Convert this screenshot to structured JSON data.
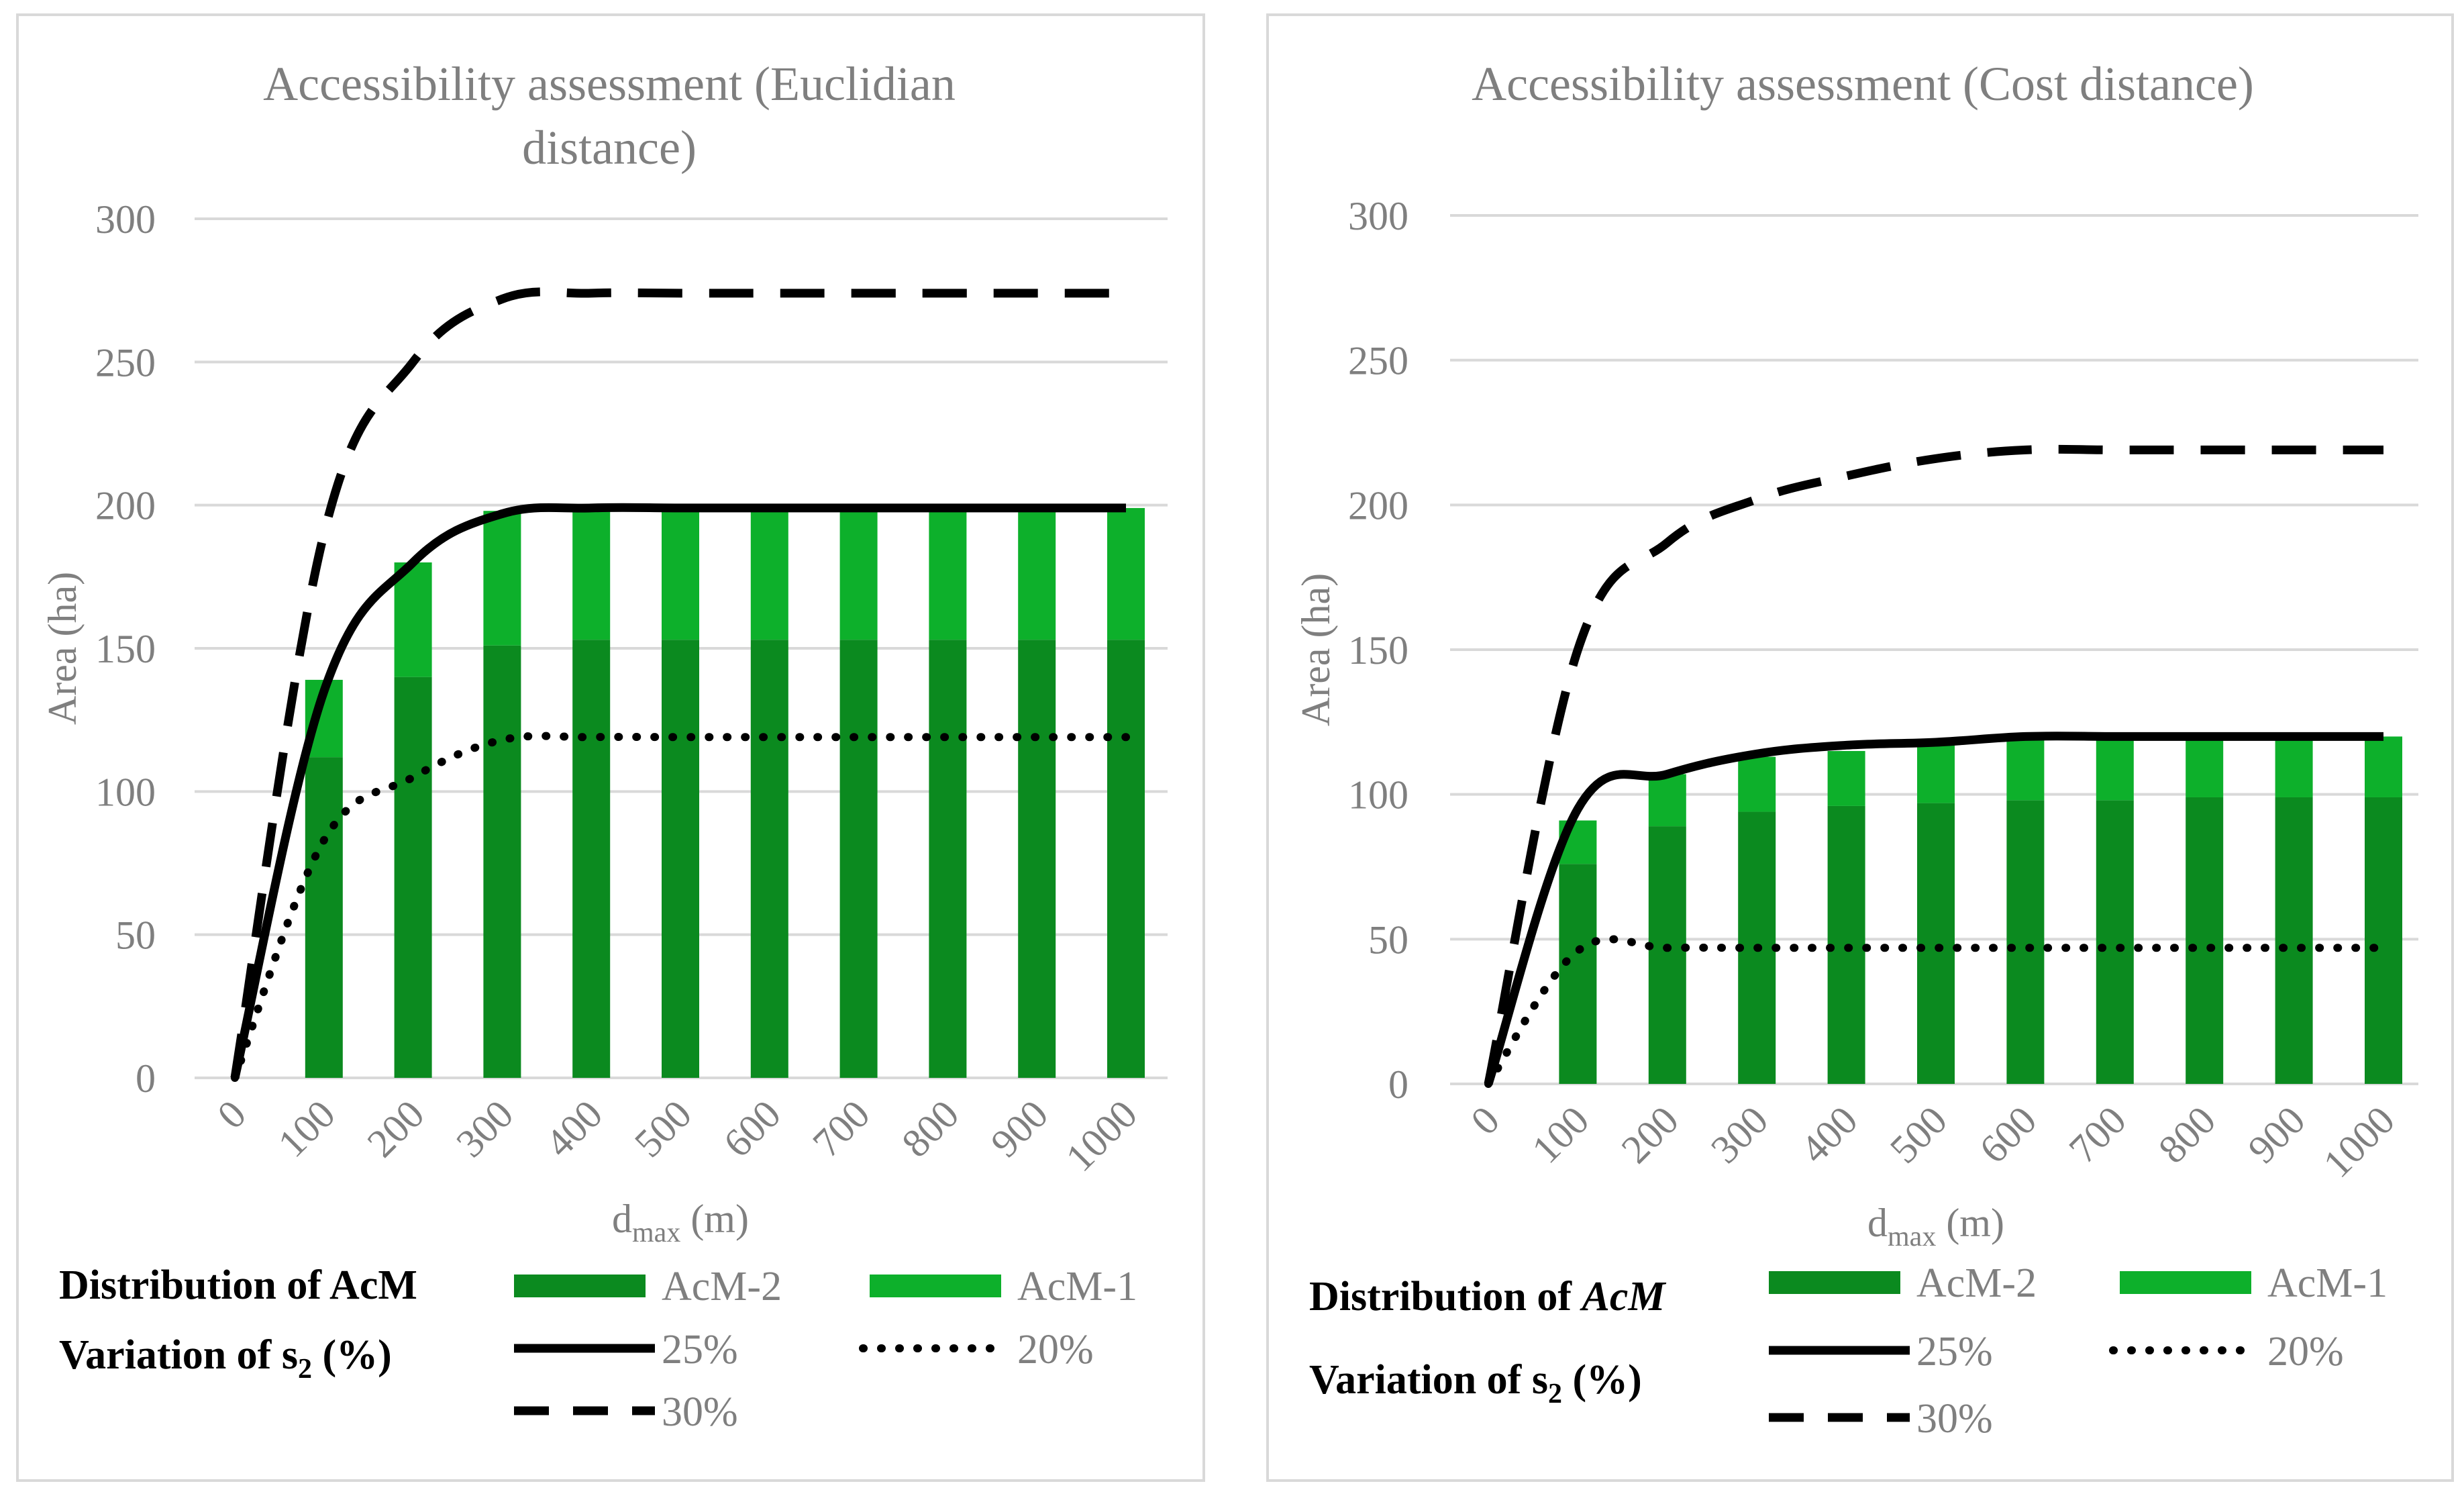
{
  "colors": {
    "acm2": "#0b8a1f",
    "acm1": "#0db02b",
    "line": "#000000",
    "text": "#7f7f7f",
    "grid": "#d9d9d9"
  },
  "legend": {
    "distribution_label": "Distribution of AcM",
    "distribution_label_right_prefix": "Distribution of ",
    "distribution_label_right_italic": "AcM",
    "variation_label_prefix": "Variation of s",
    "variation_label_sub": "2",
    "variation_label_suffix": " (%)",
    "acm2": "AcM-2",
    "acm1": "AcM-1",
    "s25": "25%",
    "s20": "20%",
    "s30": "30%"
  },
  "chart_data": [
    {
      "type": "bar",
      "title_line1": "Accessibility assessment (Euclidian",
      "title_line2": "distance)",
      "ylabel": "Area (ha)",
      "xlabel_main": "d",
      "xlabel_sub": "max",
      "xlabel_unit": " (m)",
      "ylim": [
        0,
        300
      ],
      "yticks": [
        "0",
        "50",
        "100",
        "150",
        "200",
        "250",
        "300"
      ],
      "categories": [
        "0",
        "100",
        "200",
        "300",
        "400",
        "500",
        "600",
        "700",
        "800",
        "900",
        "1000"
      ],
      "series": [
        {
          "name": "AcM-2",
          "kind": "bar",
          "values": [
            0,
            112,
            140,
            151,
            153,
            153,
            153,
            153,
            153,
            153,
            153
          ]
        },
        {
          "name": "AcM-1",
          "kind": "bar",
          "values": [
            0,
            27,
            40,
            47,
            46,
            46,
            46,
            46,
            46,
            46,
            46
          ]
        },
        {
          "name": "25%",
          "kind": "line-solid",
          "values": [
            0,
            135,
            180,
            197,
            199,
            199,
            199,
            199,
            199,
            199,
            199
          ]
        },
        {
          "name": "20%",
          "kind": "line-dotted",
          "values": [
            0,
            83,
            105,
            118,
            119,
            119,
            119,
            119,
            119,
            119,
            119
          ]
        },
        {
          "name": "30%",
          "kind": "line-dashed",
          "values": [
            0,
            190,
            250,
            272,
            274,
            274,
            274,
            274,
            274,
            274,
            274
          ]
        }
      ]
    },
    {
      "type": "bar",
      "title_line1": "Accessibility assessment (Cost distance)",
      "title_line2": "",
      "ylabel": "Area (ha)",
      "xlabel_main": "d",
      "xlabel_sub": "max",
      "xlabel_unit": " (m)",
      "ylim": [
        0,
        300
      ],
      "yticks": [
        "0",
        "50",
        "100",
        "150",
        "200",
        "250",
        "300"
      ],
      "categories": [
        "0",
        "100",
        "200",
        "300",
        "400",
        "500",
        "600",
        "700",
        "800",
        "900",
        "1000"
      ],
      "series": [
        {
          "name": "AcM-2",
          "kind": "bar",
          "values": [
            0,
            76,
            89,
            94,
            96,
            97,
            98,
            98,
            99,
            99,
            99
          ]
        },
        {
          "name": "AcM-1",
          "kind": "bar",
          "values": [
            0,
            15,
            18,
            19,
            19,
            20,
            21,
            21,
            21,
            21,
            21
          ]
        },
        {
          "name": "25%",
          "kind": "line-solid",
          "values": [
            0,
            95,
            107,
            114,
            117,
            118,
            120,
            120,
            120,
            120,
            120
          ]
        },
        {
          "name": "20%",
          "kind": "line-dotted",
          "values": [
            0,
            46,
            47,
            47,
            47,
            47,
            47,
            47,
            47,
            47,
            47
          ]
        },
        {
          "name": "30%",
          "kind": "line-dashed",
          "values": [
            0,
            150,
            187,
            202,
            210,
            216,
            219,
            219,
            219,
            219,
            219
          ]
        }
      ]
    }
  ]
}
